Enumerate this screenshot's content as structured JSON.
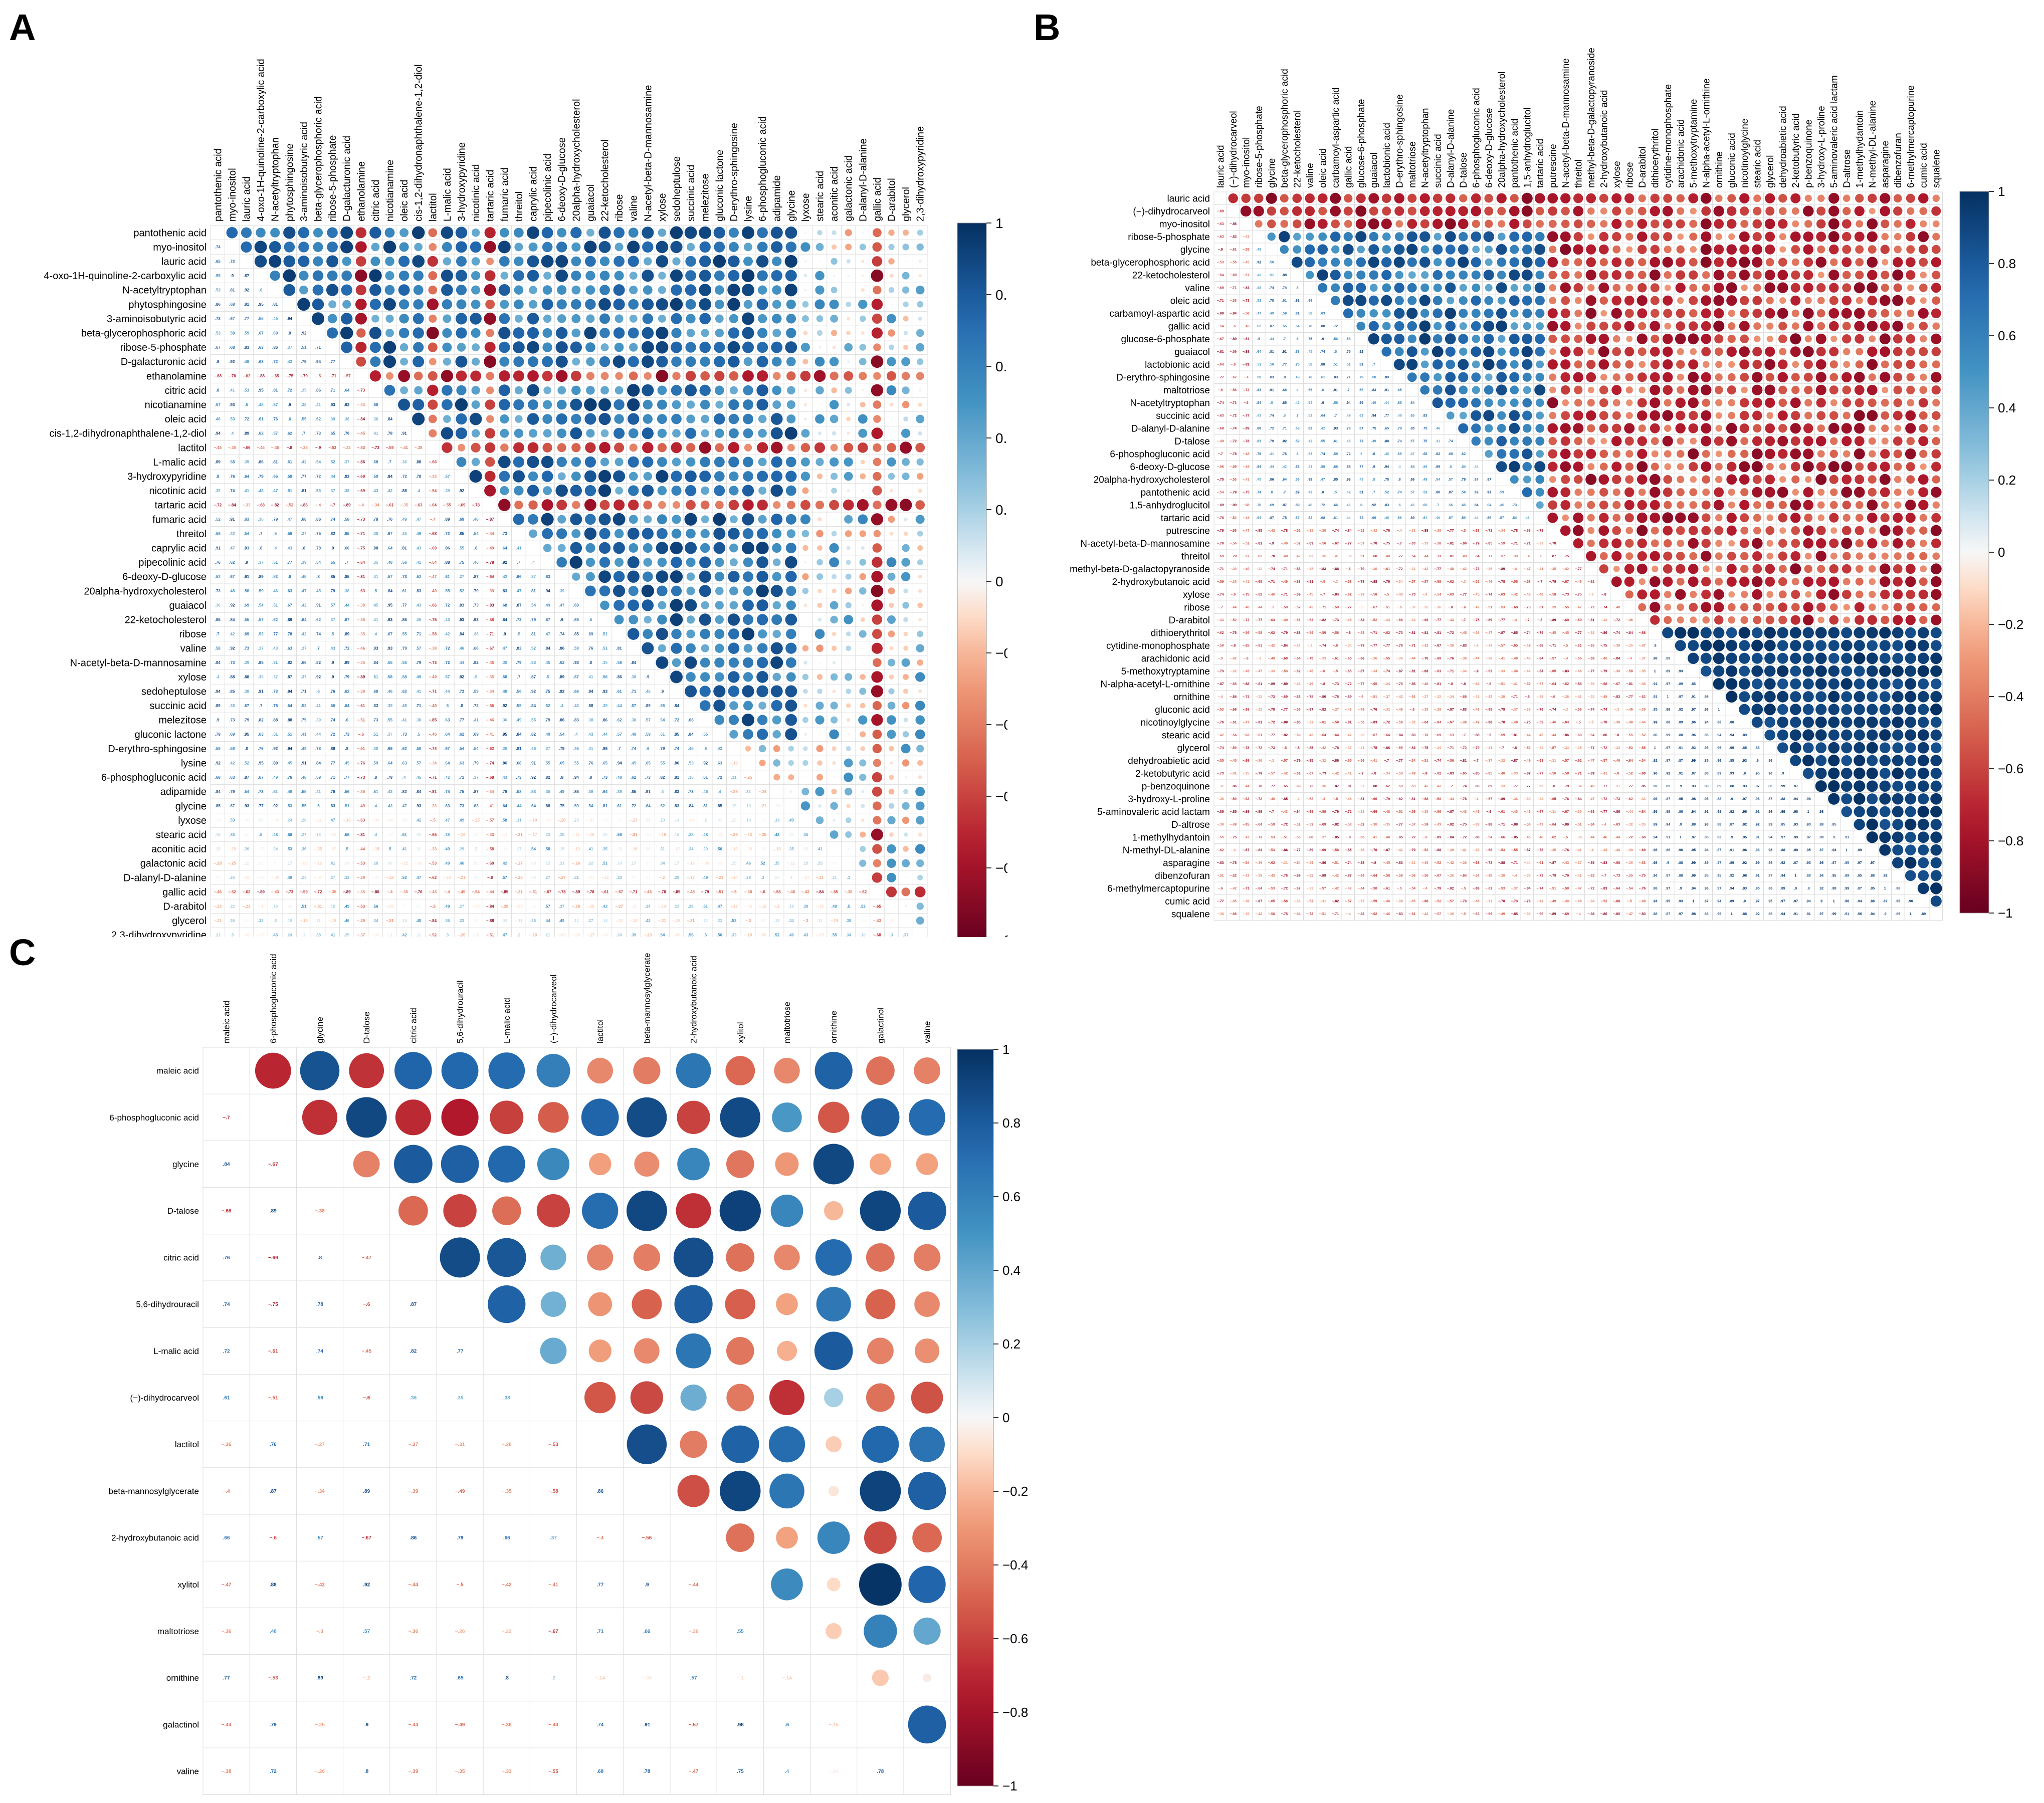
{
  "panels": [
    {
      "letter": "A"
    },
    {
      "letter": "B"
    },
    {
      "letter": "C"
    }
  ],
  "colorbar": {
    "ticks": [
      "1",
      "0.8",
      "0.6",
      "0.4",
      "0.2",
      "0",
      "−0.2",
      "−0.4",
      "−0.6",
      "−0.8",
      "−1"
    ],
    "colors": {
      "positive": "#053061",
      "mid": "#f7f7f7",
      "negative": "#67001f"
    }
  },
  "chart_data": [
    {
      "type": "heatmap",
      "panel": "A",
      "title": "",
      "style": "corrplot-circle-upper-number-lower",
      "variables": [
        "pantothenic acid",
        "myo-inositol",
        "lauric acid",
        "4-oxo-1H-quinoline-2-carboxylic acid",
        "N-acetyltryptophan",
        "phytosphingosine",
        "3-aminoisobutyric acid",
        "beta-glycerophosphoric acid",
        "ribose-5-phosphate",
        "D-galacturonic acid",
        "ethanolamine",
        "citric acid",
        "nicotianamine",
        "oleic acid",
        "cis-1,2-dihydronaphthalene-1,2-diol",
        "lactitol",
        "L-malic acid",
        "3-hydroxypyridine",
        "nicotinic acid",
        "tartaric acid",
        "fumaric acid",
        "threitol",
        "caprylic acid",
        "pipecolinic acid",
        "6-deoxy-D-glucose",
        "20alpha-hydroxycholesterol",
        "guaiacol",
        "22-ketocholesterol",
        "ribose",
        "valine",
        "N-acetyl-beta-D-mannosamine",
        "xylose",
        "sedoheptulose",
        "succinic acid",
        "melezitose",
        "gluconic lactone",
        "D-erythro-sphingosine",
        "lysine",
        "6-phosphogluconic acid",
        "adipamide",
        "glycine",
        "lyxose",
        "stearic acid",
        "aconitic acid",
        "galactonic acid",
        "D-alanyl-D-alanine",
        "gallic acid",
        "D-arabitol",
        "glycerol",
        "2,3-dihydroxypyridine"
      ],
      "value_range": [
        -1,
        1
      ],
      "note": "Correlation matrix; upper triangle circles (size/colour = r), lower triangle printed r values."
    },
    {
      "type": "heatmap",
      "panel": "B",
      "title": "",
      "style": "corrplot-circle-upper-number-lower",
      "variables": [
        "lauric acid",
        "(−)-dihydrocarveol",
        "myo-inositol",
        "ribose-5-phosphate",
        "glycine",
        "beta-glycerophosphoric acid",
        "22-ketocholesterol",
        "valine",
        "oleic acid",
        "carbamoyl-aspartic acid",
        "gallic acid",
        "glucose-6-phosphate",
        "guaiacol",
        "lactobionic acid",
        "D-erythro-sphingosine",
        "maltotriose",
        "N-acetyltryptophan",
        "succinic acid",
        "D-alanyl-D-alanine",
        "D-talose",
        "6-phosphogluconic acid",
        "6-deoxy-D-glucose",
        "20alpha-hydroxycholesterol",
        "pantothenic acid",
        "1,5-anhydroglucitol",
        "tartaric acid",
        "putrescine",
        "N-acetyl-beta-D-mannosamine",
        "threitol",
        "methyl-beta-D-galactopyranoside",
        "2-hydroxybutanoic acid",
        "xylose",
        "ribose",
        "D-arabitol",
        "dithioerythritol",
        "cytidine-monophosphate",
        "arachidonic acid",
        "5-methoxytryptamine",
        "N-alpha-acetyl-L-ornithine",
        "ornithine",
        "gluconic acid",
        "nicotinoylglycine",
        "stearic acid",
        "glycerol",
        "dehydroabietic acid",
        "2-ketobutyric acid",
        "p-benzoquinone",
        "3-hydroxy-L-proline",
        "5-aminovaleric acid lactam",
        "D-altrose",
        "1-methylhydantoin",
        "N-methyl-DL-alanine",
        "asparagine",
        "dibenzofuran",
        "6-methylmercaptopurine",
        "cumic acid",
        "squalene"
      ],
      "value_range": [
        -1,
        1
      ],
      "note": "Correlation matrix; upper triangle circles, lower triangle printed r values."
    },
    {
      "type": "heatmap",
      "panel": "C",
      "title": "",
      "style": "corrplot-circle-upper-number-lower",
      "variables": [
        "maleic acid",
        "6-phosphogluconic acid",
        "glycine",
        "D-talose",
        "citric acid",
        "5,6-dihydrouracil",
        "L-malic acid",
        "(−)-dihydrocarveol",
        "lactitol",
        "beta-mannosylglycerate",
        "2-hydroxybutanoic acid",
        "xylitol",
        "maltotriose",
        "ornithine",
        "galactinol",
        "valine"
      ],
      "matrix": [
        [
          1,
          -0.7,
          0.84,
          -0.66,
          0.76,
          0.74,
          0.72,
          0.61,
          -0.36,
          -0.4,
          0.66,
          -0.47,
          -0.36,
          0.77,
          -0.44,
          -0.38
        ],
        [
          -0.7,
          1,
          -0.67,
          0.89,
          -0.69,
          -0.75,
          -0.61,
          -0.51,
          0.76,
          0.87,
          -0.6,
          0.88,
          0.48,
          -0.53,
          0.79,
          0.72
        ],
        [
          0.84,
          -0.67,
          1,
          -0.38,
          0.8,
          0.78,
          0.74,
          0.56,
          -0.27,
          -0.34,
          0.57,
          -0.42,
          -0.3,
          0.89,
          -0.25,
          -0.26
        ],
        [
          -0.66,
          0.89,
          -0.38,
          1,
          -0.47,
          -0.6,
          -0.45,
          -0.6,
          0.71,
          0.89,
          -0.67,
          0.92,
          0.57,
          -0.2,
          0.9,
          0.8
        ],
        [
          0.76,
          -0.69,
          0.8,
          -0.47,
          1,
          0.87,
          0.82,
          0.36,
          -0.37,
          -0.39,
          0.86,
          -0.44,
          -0.36,
          0.72,
          -0.44,
          -0.39
        ],
        [
          0.74,
          -0.75,
          0.78,
          -0.6,
          0.87,
          1,
          0.77,
          0.35,
          -0.31,
          -0.49,
          0.79,
          -0.5,
          -0.26,
          0.65,
          -0.49,
          -0.35
        ],
        [
          0.72,
          -0.61,
          0.74,
          -0.45,
          0.82,
          0.77,
          1,
          0.38,
          -0.28,
          -0.35,
          0.66,
          -0.42,
          -0.22,
          0.8,
          -0.38,
          -0.33
        ],
        [
          0.61,
          -0.51,
          0.56,
          -0.6,
          0.36,
          0.35,
          0.38,
          1,
          -0.53,
          -0.58,
          0.37,
          -0.41,
          -0.67,
          0.2,
          -0.44,
          -0.55
        ],
        [
          -0.36,
          0.76,
          -0.27,
          0.71,
          -0.37,
          -0.31,
          -0.28,
          -0.53,
          1,
          0.86,
          -0.4,
          0.77,
          0.71,
          -0.14,
          0.74,
          0.68
        ],
        [
          -0.4,
          0.87,
          -0.34,
          0.89,
          -0.39,
          -0.49,
          -0.35,
          -0.58,
          0.86,
          1,
          -0.56,
          0.9,
          0.66,
          -0.06,
          0.91,
          0.78
        ],
        [
          0.66,
          -0.6,
          0.57,
          -0.67,
          0.86,
          0.79,
          0.66,
          0.37,
          -0.4,
          -0.56,
          1,
          -0.44,
          -0.26,
          0.57,
          -0.57,
          -0.47
        ],
        [
          -0.47,
          0.88,
          -0.42,
          0.92,
          -0.44,
          -0.5,
          -0.42,
          -0.41,
          0.77,
          0.9,
          -0.44,
          1,
          0.55,
          -0.1,
          0.98,
          0.75
        ],
        [
          -0.36,
          0.48,
          -0.3,
          0.57,
          -0.36,
          -0.26,
          -0.22,
          -0.67,
          0.71,
          0.66,
          -0.26,
          0.55,
          1,
          -0.14,
          0.6,
          0.4
        ],
        [
          0.77,
          -0.53,
          0.89,
          -0.2,
          0.72,
          0.65,
          0.8,
          0.2,
          -0.14,
          -0.06,
          0.57,
          -0.1,
          -0.14,
          1,
          -0.15,
          -0.04
        ],
        [
          -0.44,
          0.79,
          -0.25,
          0.9,
          -0.44,
          -0.49,
          -0.38,
          -0.44,
          0.74,
          0.91,
          -0.57,
          0.98,
          0.6,
          -0.15,
          1,
          0.78
        ],
        [
          -0.38,
          0.72,
          -0.26,
          0.8,
          -0.39,
          -0.35,
          -0.33,
          -0.55,
          0.68,
          0.78,
          -0.47,
          0.75,
          0.4,
          -0.04,
          0.78,
          1
        ]
      ],
      "value_range": [
        -1,
        1
      ],
      "note": "Correlation matrix; upper triangle circles (size/colour = r), lower triangle printed r values."
    }
  ]
}
